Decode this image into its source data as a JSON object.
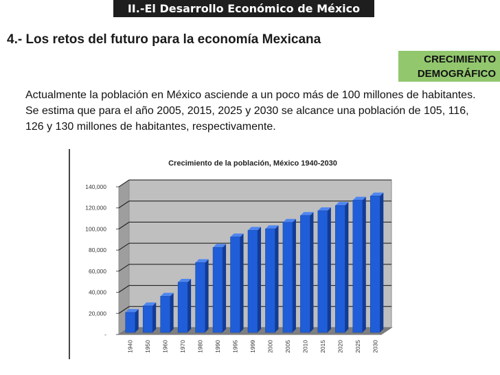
{
  "header": {
    "title": "II.-El Desarrollo Económico de México"
  },
  "section": {
    "title": "4.- Los retos del futuro para la economía Mexicana"
  },
  "badge": {
    "line1": "CRECIMIENTO",
    "line2": "DEMOGRÁFICO",
    "color": "#92c76e"
  },
  "paragraph": "Actualmente la población en México asciende a un poco más de 100 millones de habitantes. Se estima que para el año 2005, 2015, 2025 y 2030 se alcance una población de 105, 116, 126 y 130 millones de habitantes, respectivamente.",
  "chart_data": {
    "type": "bar",
    "title": "Crecimiento de la población, México 1940-2030",
    "xlabel": "",
    "ylabel": "",
    "categories": [
      "1940",
      "1950",
      "1960",
      "1970",
      "1980",
      "1990",
      "1995",
      "1999",
      "2000",
      "2005",
      "2010",
      "2015",
      "2020",
      "2025",
      "2030"
    ],
    "values": [
      19600,
      25800,
      34900,
      48200,
      66800,
      81200,
      91200,
      97400,
      98900,
      105000,
      111500,
      116000,
      121000,
      126000,
      130000
    ],
    "ylim": [
      0,
      140000
    ],
    "yticks": [
      "140,000",
      "120,000",
      "100,000",
      "80,000",
      "60,000",
      "40,000",
      "20,000",
      "-"
    ],
    "bar_color": "#1f5ed8",
    "grid": true,
    "legend": "none"
  }
}
